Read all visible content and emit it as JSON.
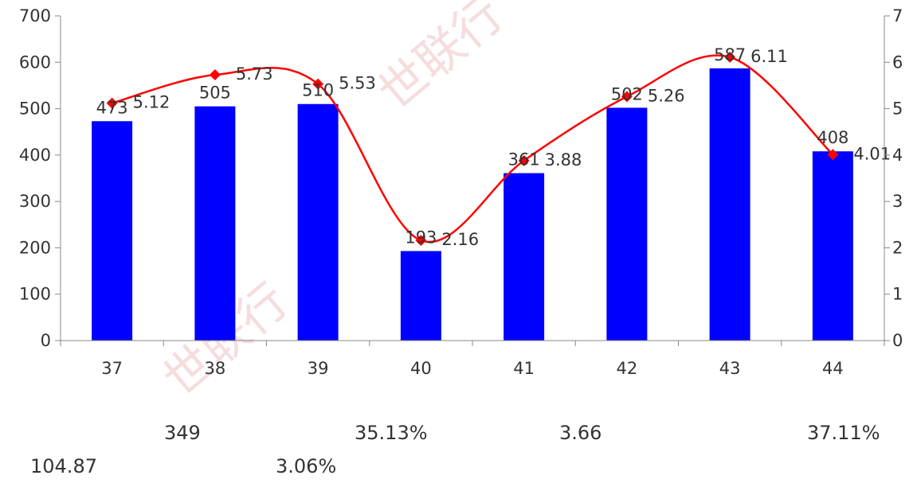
{
  "chart_data": {
    "type": "bar+line",
    "categories": [
      "37",
      "38",
      "39",
      "40",
      "41",
      "42",
      "43",
      "44"
    ],
    "series": [
      {
        "type": "bar",
        "axis": "left",
        "color": "#0000ff",
        "values": [
          473,
          505,
          510,
          193,
          361,
          502,
          587,
          408
        ]
      },
      {
        "type": "line",
        "axis": "right",
        "color": "#ff0000",
        "marker": "diamond",
        "smooth": true,
        "values": [
          5.12,
          5.73,
          5.53,
          2.16,
          3.88,
          5.26,
          6.11,
          4.01
        ]
      }
    ],
    "y_left": {
      "ylim": [
        0,
        700
      ],
      "ticks": [
        "0",
        "100",
        "200",
        "300",
        "400",
        "500",
        "600",
        "700"
      ]
    },
    "y_right": {
      "ylim": [
        0,
        7
      ],
      "ticks": [
        "0",
        "1",
        "2",
        "3",
        "4",
        "5",
        "6",
        "7"
      ]
    },
    "bar_labels": [
      "473",
      "505",
      "510",
      "193",
      "361",
      "502",
      "587",
      "408"
    ],
    "line_labels": [
      "5.12",
      "5.73",
      "5.53",
      "2.16",
      "3.88",
      "5.26",
      "6.11",
      "4.01"
    ],
    "grid": false,
    "legend": "none"
  },
  "notes": {
    "row1": [
      "349",
      "35.13%",
      "3.66",
      "37.11%"
    ],
    "row2": [
      "104.87",
      "3.06%"
    ]
  },
  "watermark": "世联行"
}
